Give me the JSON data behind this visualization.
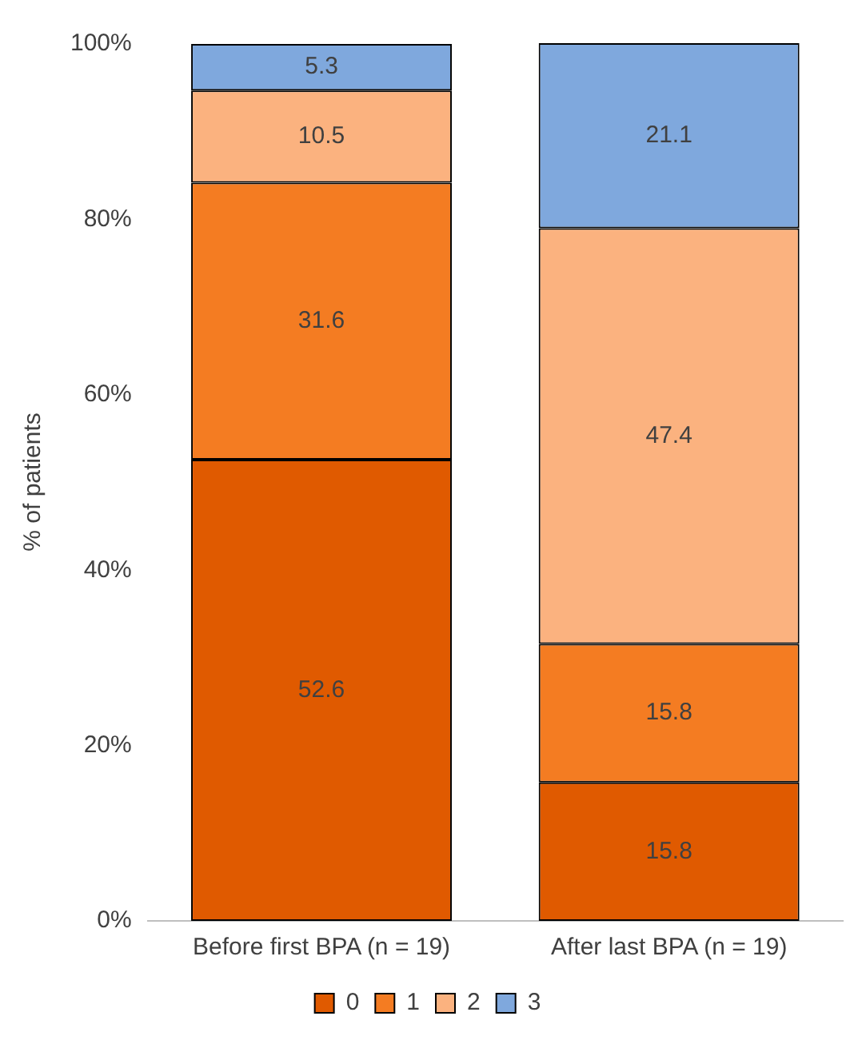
{
  "chart_data": {
    "type": "bar",
    "stacked": true,
    "ylabel": "% of patients",
    "categories": [
      "Before first BPA (n = 19)",
      "After last BPA (n = 19)"
    ],
    "series": [
      {
        "name": "0",
        "color": "#e05a00",
        "values": [
          52.6,
          15.8
        ]
      },
      {
        "name": "1",
        "color": "#f47c22",
        "values": [
          31.6,
          15.8
        ]
      },
      {
        "name": "2",
        "color": "#fbb27f",
        "values": [
          10.5,
          47.4
        ]
      },
      {
        "name": "3",
        "color": "#7fa8dd",
        "values": [
          5.3,
          21.1
        ]
      }
    ],
    "ylim": [
      0,
      100.1
    ],
    "yticks": [
      {
        "value": 0,
        "label": "0%"
      },
      {
        "value": 20,
        "label": "20%"
      },
      {
        "value": 40,
        "label": "40%"
      },
      {
        "value": 60,
        "label": "60%"
      },
      {
        "value": 80,
        "label": "80%"
      },
      {
        "value": 100,
        "label": "100%"
      }
    ],
    "grid": false,
    "legend": "bottom",
    "data_labels": true
  }
}
